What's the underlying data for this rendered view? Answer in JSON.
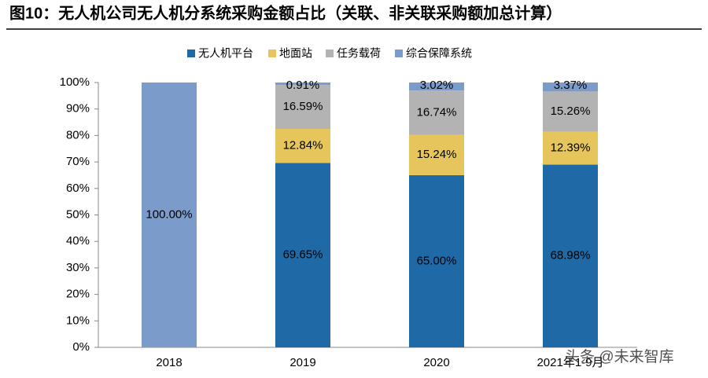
{
  "chart_data": {
    "type": "stacked-bar",
    "title": "图10：无人机公司无人机分系统采购金额占比（关联、非关联采购额加总计算）",
    "categories": [
      "2018",
      "2019",
      "2020",
      "2021年1-9月"
    ],
    "series": [
      {
        "name": "无人机平台",
        "color": "#1f69a6",
        "values": [
          null,
          69.65,
          65.0,
          68.98
        ],
        "value_labels": [
          null,
          "69.65%",
          "65.00%",
          "68.98%"
        ]
      },
      {
        "name": "地面站",
        "color": "#e6c65c",
        "values": [
          null,
          12.84,
          15.24,
          12.39
        ],
        "value_labels": [
          null,
          "12.84%",
          "15.24%",
          "12.39%"
        ]
      },
      {
        "name": "任务载荷",
        "color": "#b3b3b3",
        "values": [
          null,
          16.59,
          16.74,
          15.26
        ],
        "value_labels": [
          null,
          "16.59%",
          "16.74%",
          "15.26%"
        ]
      },
      {
        "name": "综合保障系统",
        "color": "#7b9bca",
        "values": [
          100.0,
          0.91,
          3.02,
          3.37
        ],
        "value_labels": [
          "100.00%",
          "0.91%",
          "3.02%",
          "3.37%"
        ]
      }
    ],
    "ylim": [
      0,
      100
    ],
    "yticks": [
      {
        "value": 0,
        "label": "0%"
      },
      {
        "value": 10,
        "label": "10%"
      },
      {
        "value": 20,
        "label": "20%"
      },
      {
        "value": 30,
        "label": "30%"
      },
      {
        "value": 40,
        "label": "40%"
      },
      {
        "value": 50,
        "label": "50%"
      },
      {
        "value": 60,
        "label": "60%"
      },
      {
        "value": 70,
        "label": "70%"
      },
      {
        "value": 80,
        "label": "80%"
      },
      {
        "value": 90,
        "label": "90%"
      },
      {
        "value": 100,
        "label": "100%"
      }
    ],
    "legend": "top",
    "watermark": "头条 @未来智库"
  }
}
